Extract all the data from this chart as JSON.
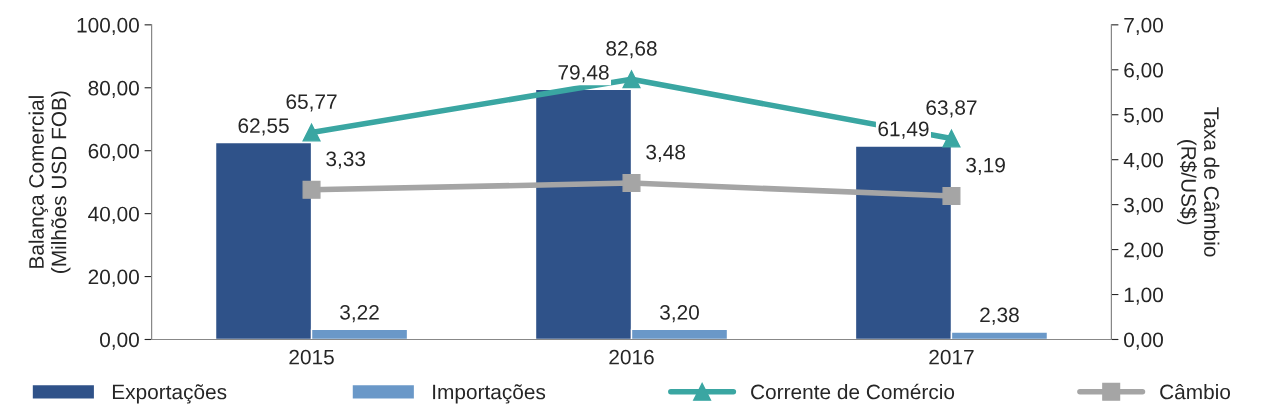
{
  "chart_data": {
    "type": "bar",
    "categories": [
      "2015",
      "2016",
      "2017"
    ],
    "ylabel": "Balança Comercial\n(Milhões USD FOB)",
    "y2label": "Taxa de Câmbio\n(R$/US$)",
    "ylim": [
      0,
      100
    ],
    "yticks": [
      {
        "value": 0,
        "label": "0,00"
      },
      {
        "value": 20,
        "label": "20,00"
      },
      {
        "value": 40,
        "label": "40,00"
      },
      {
        "value": 60,
        "label": "60,00"
      },
      {
        "value": 80,
        "label": "80,00"
      },
      {
        "value": 100,
        "label": "100,00"
      }
    ],
    "y2lim": [
      0,
      7
    ],
    "y2ticks": [
      {
        "value": 0,
        "label": "0,00"
      },
      {
        "value": 1,
        "label": "1,00"
      },
      {
        "value": 2,
        "label": "2,00"
      },
      {
        "value": 3,
        "label": "3,00"
      },
      {
        "value": 4,
        "label": "4,00"
      },
      {
        "value": 5,
        "label": "5,00"
      },
      {
        "value": 6,
        "label": "6,00"
      },
      {
        "value": 7,
        "label": "7,00"
      }
    ],
    "series": [
      {
        "name": "Exportações",
        "color": "#2f5289",
        "values": [
          62.55,
          79.48,
          61.49
        ],
        "value_labels": [
          "62,55",
          "79,48",
          "61,49"
        ]
      },
      {
        "name": "Importações",
        "color": "#6a98c8",
        "values": [
          3.22,
          3.2,
          2.38
        ],
        "value_labels": [
          "3,22",
          "3,20",
          "2,38"
        ]
      },
      {
        "name": "Corrente de Comércio",
        "type": "line",
        "color": "#3aa6a2",
        "marker": "triangle",
        "values": [
          65.77,
          82.68,
          63.87
        ],
        "value_labels": [
          "65,77",
          "82,68",
          "63,87"
        ]
      },
      {
        "name": "Câmbio",
        "type": "line",
        "axis": "y2",
        "color": "#a5a5a5",
        "marker": "square",
        "values": [
          3.33,
          3.48,
          3.19
        ],
        "value_labels": [
          "3,33",
          "3,48",
          "3,19"
        ]
      }
    ],
    "legend": "bottom",
    "grid": false
  }
}
